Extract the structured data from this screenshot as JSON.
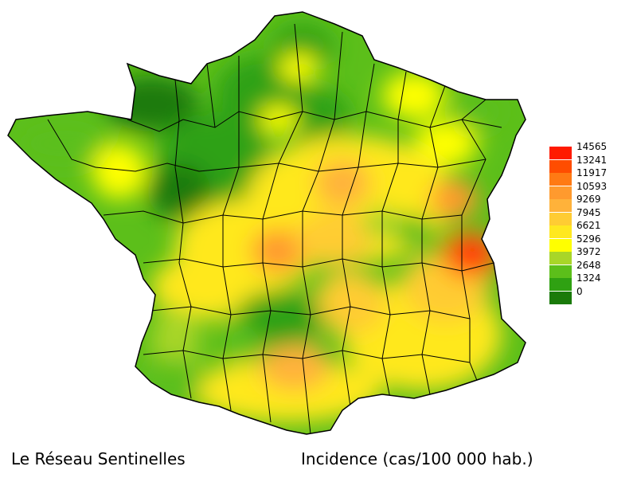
{
  "caption_left": "Le Réseau Sentinelles",
  "caption_right": "Incidence (cas/100 000 hab.)",
  "legend": {
    "labels": [
      "14565",
      "13241",
      "11917",
      "10593",
      "9269",
      "7945",
      "6621",
      "5296",
      "3972",
      "2648",
      "1324",
      "0"
    ],
    "colors": [
      "#ff1a00",
      "#ff4d00",
      "#ff7a14",
      "#ff9a2e",
      "#ffb23a",
      "#ffcc33",
      "#ffe81f",
      "#ffff00",
      "#a8d628",
      "#5cbf1a",
      "#2fa112",
      "#1a7a0a"
    ]
  },
  "map": {
    "region": "France",
    "border_color": "#000000"
  }
}
